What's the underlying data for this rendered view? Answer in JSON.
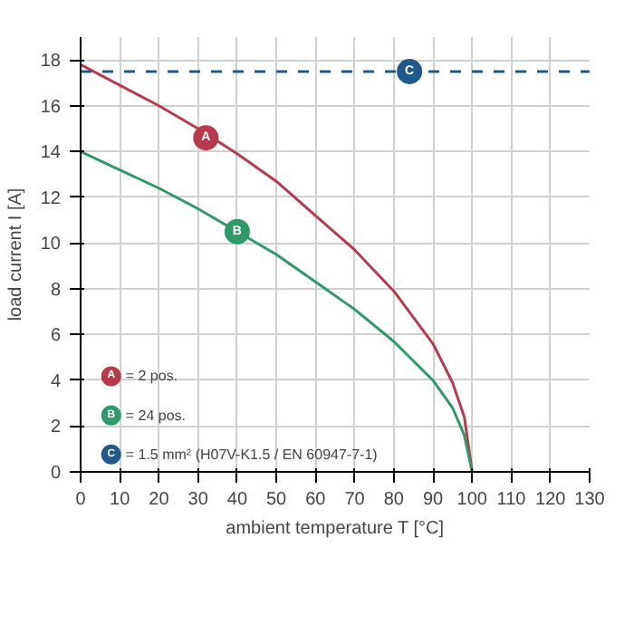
{
  "chart_data": {
    "type": "line",
    "xlabel": "ambient temperature T [°C]",
    "ylabel": "load current I [A]",
    "x": [
      0,
      10,
      20,
      30,
      40,
      50,
      60,
      70,
      80,
      90,
      95,
      98,
      100
    ],
    "series": [
      {
        "name": "= 2 pos.",
        "color": "#b83a4b",
        "values": [
          17.8,
          16.9,
          16.0,
          15.0,
          13.9,
          12.7,
          11.2,
          9.7,
          7.9,
          5.6,
          3.9,
          2.4,
          0
        ]
      },
      {
        "name": "= 24 pos.",
        "color": "#2e9a68",
        "values": [
          14.0,
          13.2,
          12.4,
          11.5,
          10.5,
          9.5,
          8.3,
          7.1,
          5.7,
          4.0,
          2.8,
          1.6,
          0
        ]
      },
      {
        "name": "= 1.5 mm² (H07V-K1.5 / EN 60947-7-1)",
        "color": "#1f5a8a",
        "x": [
          0,
          130
        ],
        "values": [
          17.5,
          17.5
        ],
        "line_style": "dashed"
      }
    ],
    "annotations": [
      {
        "text": "A",
        "x": 32,
        "y": 14.6
      },
      {
        "text": "B",
        "x": 40,
        "y": 10.5
      },
      {
        "text": "C",
        "x": 84,
        "y": 17.5
      }
    ],
    "xlim": [
      0,
      130
    ],
    "xticks": [
      0,
      10,
      20,
      30,
      40,
      50,
      60,
      70,
      80,
      90,
      100,
      110,
      120,
      130
    ],
    "ylim": [
      0,
      19
    ],
    "yticks": [
      0,
      2,
      4,
      6,
      8,
      10,
      12,
      14,
      16,
      18
    ],
    "grid": true,
    "legend": "bottom left",
    "marker": "none",
    "line_style": "solid"
  }
}
